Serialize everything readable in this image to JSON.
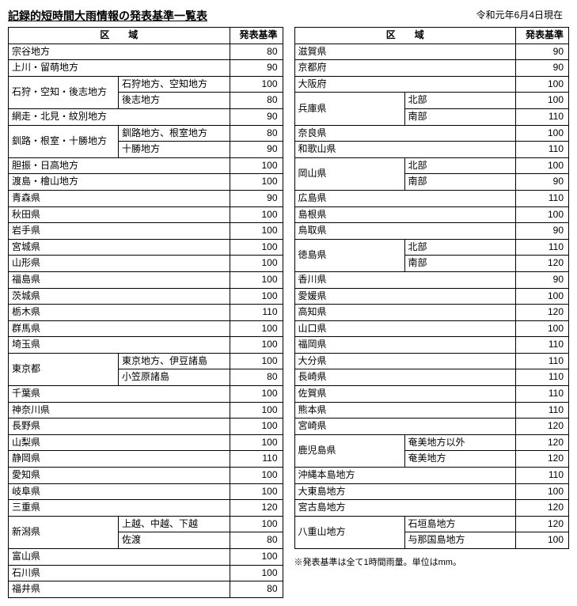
{
  "title": "記録的短時間大雨情報の発表基準一覧表",
  "date": "令和元年6月4日現在",
  "note": "※発表基準は全て1時間雨量。単位はmm。",
  "headers": {
    "region": "区　　域",
    "standard": "発表基準"
  },
  "left": [
    {
      "region": "宗谷地方",
      "val": 80
    },
    {
      "region": "上川・留萌地方",
      "val": 90
    },
    {
      "region": "石狩・空知・後志地方",
      "rowspan": 2,
      "sub": "石狩地方、空知地方",
      "val": 100
    },
    {
      "sub": "後志地方",
      "val": 80
    },
    {
      "region": "網走・北見・紋別地方",
      "val": 90
    },
    {
      "region": "釧路・根室・十勝地方",
      "rowspan": 2,
      "sub": "釧路地方、根室地方",
      "val": 80
    },
    {
      "sub": "十勝地方",
      "val": 90
    },
    {
      "region": "胆振・日高地方",
      "val": 100
    },
    {
      "region": "渡島・檜山地方",
      "val": 100
    },
    {
      "region": "青森県",
      "val": 90
    },
    {
      "region": "秋田県",
      "val": 100
    },
    {
      "region": "岩手県",
      "val": 100
    },
    {
      "region": "宮城県",
      "val": 100
    },
    {
      "region": "山形県",
      "val": 100
    },
    {
      "region": "福島県",
      "val": 100
    },
    {
      "region": "茨城県",
      "val": 100
    },
    {
      "region": "栃木県",
      "val": 110
    },
    {
      "region": "群馬県",
      "val": 100
    },
    {
      "region": "埼玉県",
      "val": 100
    },
    {
      "region": "東京都",
      "rowspan": 2,
      "sub": "東京地方、伊豆諸島",
      "val": 100
    },
    {
      "sub": "小笠原諸島",
      "val": 80
    },
    {
      "region": "千葉県",
      "val": 100
    },
    {
      "region": "神奈川県",
      "val": 100
    },
    {
      "region": "長野県",
      "val": 100
    },
    {
      "region": "山梨県",
      "val": 100
    },
    {
      "region": "静岡県",
      "val": 110
    },
    {
      "region": "愛知県",
      "val": 100
    },
    {
      "region": "岐阜県",
      "val": 100
    },
    {
      "region": "三重県",
      "val": 120
    },
    {
      "region": "新潟県",
      "rowspan": 2,
      "sub": "上越、中越、下越",
      "val": 100
    },
    {
      "sub": "佐渡",
      "val": 80
    },
    {
      "region": "富山県",
      "val": 100
    },
    {
      "region": "石川県",
      "val": 100
    },
    {
      "region": "福井県",
      "val": 80
    }
  ],
  "right": [
    {
      "region": "滋賀県",
      "val": 90
    },
    {
      "region": "京都府",
      "val": 90
    },
    {
      "region": "大阪府",
      "val": 100
    },
    {
      "region": "兵庫県",
      "rowspan": 2,
      "sub": "北部",
      "val": 100
    },
    {
      "sub": "南部",
      "val": 110
    },
    {
      "region": "奈良県",
      "val": 100
    },
    {
      "region": "和歌山県",
      "val": 110
    },
    {
      "region": "岡山県",
      "rowspan": 2,
      "sub": "北部",
      "val": 100
    },
    {
      "sub": "南部",
      "val": 90
    },
    {
      "region": "広島県",
      "val": 110
    },
    {
      "region": "島根県",
      "val": 100
    },
    {
      "region": "鳥取県",
      "val": 90
    },
    {
      "region": "徳島県",
      "rowspan": 2,
      "sub": "北部",
      "val": 110
    },
    {
      "sub": "南部",
      "val": 120
    },
    {
      "region": "香川県",
      "val": 90
    },
    {
      "region": "愛媛県",
      "val": 100
    },
    {
      "region": "高知県",
      "val": 120
    },
    {
      "region": "山口県",
      "val": 100
    },
    {
      "region": "福岡県",
      "val": 110
    },
    {
      "region": "大分県",
      "val": 110
    },
    {
      "region": "長崎県",
      "val": 110
    },
    {
      "region": "佐賀県",
      "val": 110
    },
    {
      "region": "熊本県",
      "val": 110
    },
    {
      "region": "宮崎県",
      "val": 120
    },
    {
      "region": "鹿児島県",
      "rowspan": 2,
      "sub": "奄美地方以外",
      "val": 120
    },
    {
      "sub": "奄美地方",
      "val": 120
    },
    {
      "region": "沖縄本島地方",
      "val": 110
    },
    {
      "region": "大東島地方",
      "val": 100
    },
    {
      "region": "宮古島地方",
      "val": 120
    },
    {
      "region": "八重山地方",
      "rowspan": 2,
      "sub": "石垣島地方",
      "val": 120
    },
    {
      "sub": "与那国島地方",
      "val": 100
    }
  ]
}
